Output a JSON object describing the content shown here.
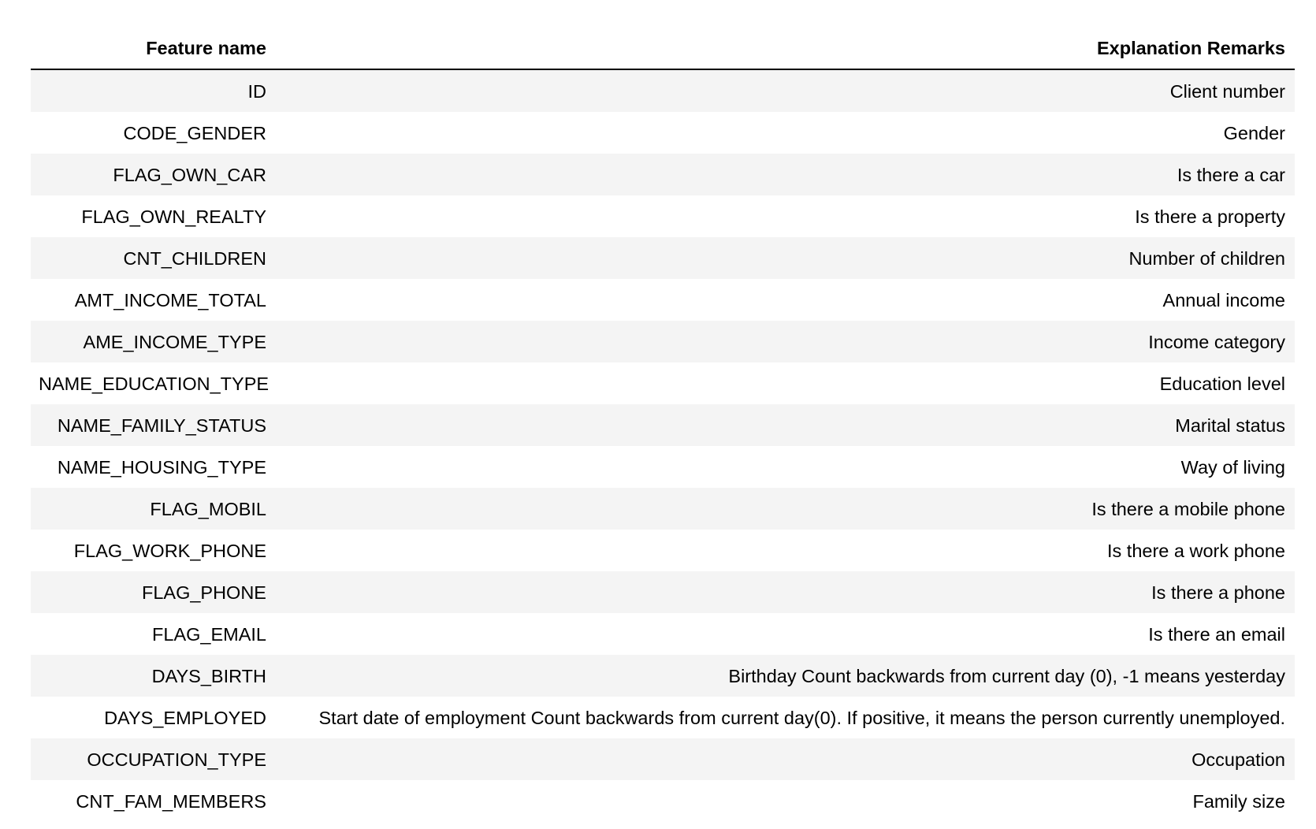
{
  "table": {
    "headers": [
      "Feature name",
      "Explanation Remarks"
    ],
    "rows": [
      [
        "ID",
        "Client number"
      ],
      [
        "CODE_GENDER",
        "Gender"
      ],
      [
        "FLAG_OWN_CAR",
        "Is there a car"
      ],
      [
        "FLAG_OWN_REALTY",
        "Is there a property"
      ],
      [
        "CNT_CHILDREN",
        "Number of children"
      ],
      [
        "AMT_INCOME_TOTAL",
        "Annual income"
      ],
      [
        "AME_INCOME_TYPE",
        "Income category"
      ],
      [
        "NAME_EDUCATION_TYPE",
        "Education level"
      ],
      [
        "NAME_FAMILY_STATUS",
        "Marital status"
      ],
      [
        "NAME_HOUSING_TYPE",
        "Way of living"
      ],
      [
        "FLAG_MOBIL",
        "Is there a mobile phone"
      ],
      [
        "FLAG_WORK_PHONE",
        "Is there a work phone"
      ],
      [
        "FLAG_PHONE",
        "Is there a phone"
      ],
      [
        "FLAG_EMAIL",
        "Is there an email"
      ],
      [
        "DAYS_BIRTH",
        "Birthday Count backwards from current day (0), -1 means yesterday"
      ],
      [
        "DAYS_EMPLOYED",
        "Start date of employment Count backwards from current day(0). If positive, it means the person currently unemployed."
      ],
      [
        "OCCUPATION_TYPE",
        "Occupation"
      ],
      [
        "CNT_FAM_MEMBERS",
        "Family size"
      ]
    ]
  }
}
